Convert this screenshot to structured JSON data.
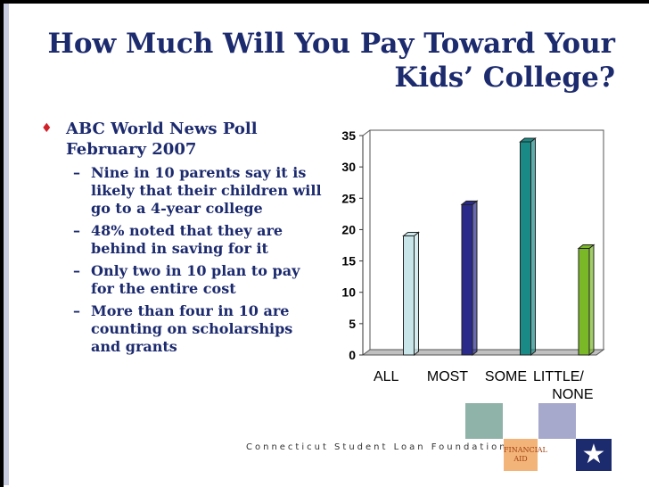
{
  "slide": {
    "title": "How Much Will You Pay Toward Your Kids’ College?",
    "bullet_main": "ABC World News Poll February 2007",
    "bullet_mark": "♦",
    "sub_mark": "–",
    "subs": [
      "Nine in 10 parents say it is likely that their children will go to a 4-year college",
      "48% noted that they are behind in saving for it",
      "Only two in 10 plan to pay for the entire cost",
      "More than four in 10 are counting on scholarships and grants"
    ]
  },
  "footer": {
    "org": "Connecticut Student Loan Foundation",
    "aid_logo_text": "FINANCIAL AID",
    "star": "★"
  },
  "colors": {
    "title": "#1c2a6e",
    "bullet_mark": "#d0202a",
    "bars": [
      "#c8e6ea",
      "#2a2a8a",
      "#1a8a86",
      "#7ab828"
    ]
  },
  "chart_data": {
    "type": "bar",
    "categories": [
      "ALL",
      "MOST",
      "SOME",
      "LITTLE/ NONE"
    ],
    "values": [
      19,
      24,
      34,
      17
    ],
    "ylim": [
      0,
      35
    ],
    "yticks": [
      0,
      5,
      10,
      15,
      20,
      25,
      30,
      35
    ],
    "title": "",
    "xlabel": "",
    "ylabel": "",
    "grid": false,
    "legend": "none"
  }
}
